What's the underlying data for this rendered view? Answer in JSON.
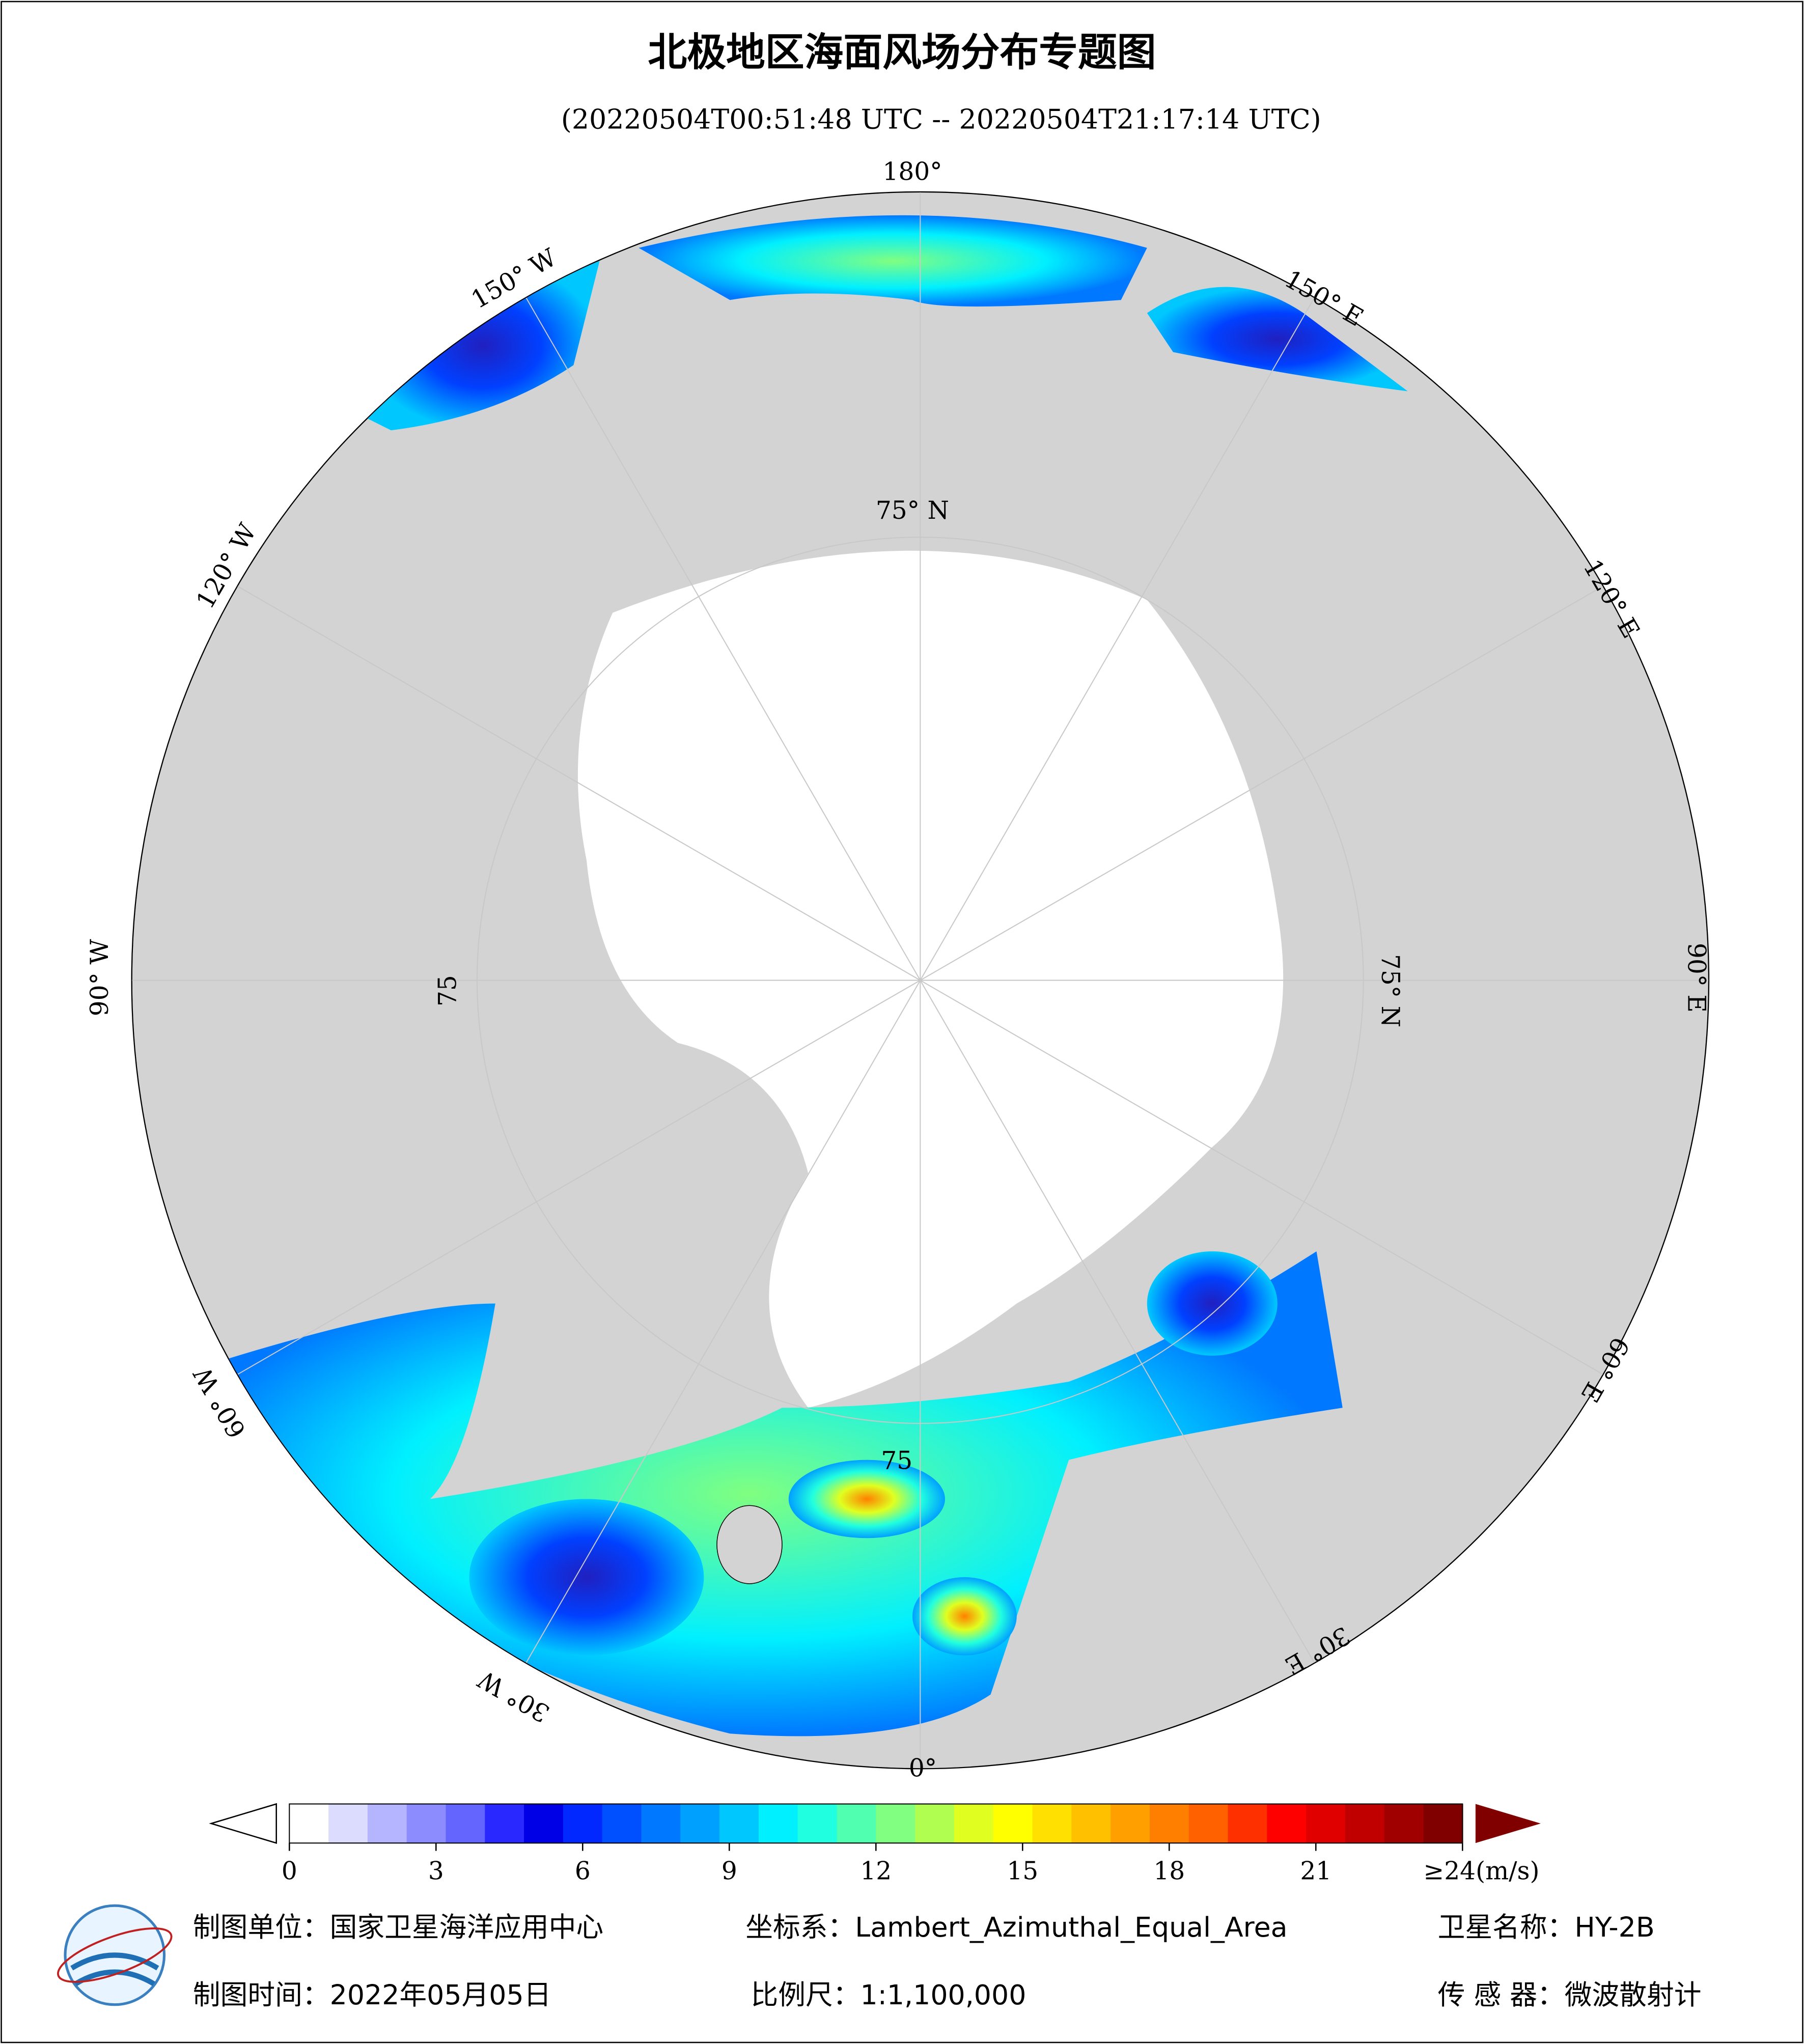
{
  "title": "北极地区海面风场分布专题图",
  "subtitle": "(20220504T00:51:48 UTC -- 20220504T21:17:14 UTC)",
  "map": {
    "labels": [
      "180°",
      "150° W",
      "150° E",
      "120° W",
      "120° E",
      "90° W",
      "90° E",
      "60° W",
      "60° E",
      "30° W",
      "30° E",
      "0°",
      "75° N",
      "75° N",
      "75",
      "75"
    ]
  },
  "colorbar": {
    "range": [
      0,
      24
    ],
    "ticks": [
      0,
      3,
      6,
      9,
      12,
      15,
      18,
      21,
      {
        "value": 24,
        "label": "≥24(m/s)"
      }
    ],
    "colors": [
      "#ffffff",
      "#dcdcff",
      "#b4b4ff",
      "#8c8cff",
      "#6464ff",
      "#2828ff",
      "#0000e6",
      "#0028ff",
      "#0050ff",
      "#0078ff",
      "#00a0ff",
      "#00c8ff",
      "#00f0ff",
      "#20ffe0",
      "#50ffb0",
      "#80ff80",
      "#b0ff50",
      "#e0ff20",
      "#ffff00",
      "#ffe000",
      "#ffc000",
      "#ffa000",
      "#ff8000",
      "#ff6000",
      "#ff3000",
      "#ff0000",
      "#e00000",
      "#c00000",
      "#a00000",
      "#800000"
    ]
  },
  "footer": {
    "unit": "制图单位：国家卫星海洋应用中心",
    "projection": "坐标系：Lambert_Azimuthal_Equal_Area",
    "satellite": "卫星名称：HY-2B",
    "date": "制图时间：2022年05月05日",
    "scale": "比例尺：1:1,100,000",
    "sensor": "传 感 器：微波散射计"
  }
}
